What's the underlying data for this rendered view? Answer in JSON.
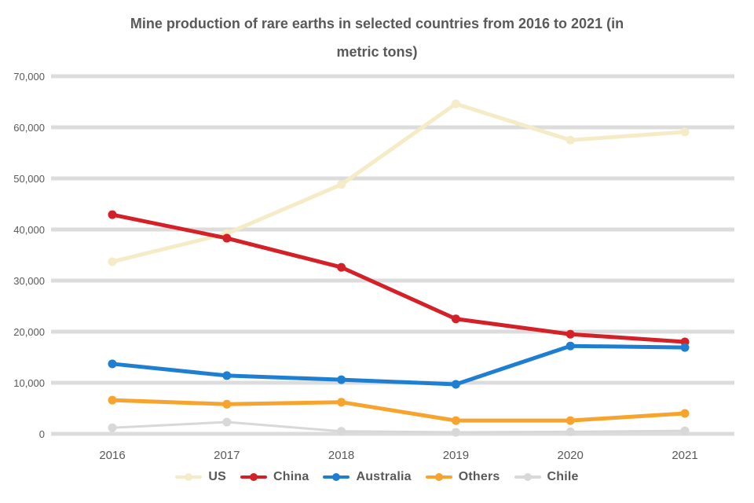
{
  "title": {
    "line1": "Mine production of rare earths in selected countries from 2016 to 2021 (in",
    "line2": "metric tons)"
  },
  "colors": {
    "background": "#ffffff",
    "gridline": "#dcdcdc",
    "text": "#595959"
  },
  "chart_data": {
    "type": "line",
    "categories": [
      "2016",
      "2017",
      "2018",
      "2019",
      "2020",
      "2021"
    ],
    "series": [
      {
        "name": "US",
        "color": "#f5ecc7",
        "line_width": 5,
        "values": [
          33700,
          39200,
          48800,
          64600,
          57500,
          59100
        ]
      },
      {
        "name": "China",
        "color": "#d42027",
        "line_width": 5,
        "values": [
          42900,
          38300,
          32600,
          22500,
          19500,
          18000
        ]
      },
      {
        "name": "Australia",
        "color": "#1e7fd2",
        "line_width": 5,
        "values": [
          13700,
          11400,
          10600,
          9700,
          17200,
          16900
        ]
      },
      {
        "name": "Others",
        "color": "#f7a42e",
        "line_width": 5,
        "values": [
          6600,
          5800,
          6200,
          2600,
          2600,
          4000
        ]
      },
      {
        "name": "Chile",
        "color": "#d8d8d8",
        "line_width": 3,
        "values": [
          1200,
          2300,
          500,
          300,
          400,
          600
        ]
      }
    ],
    "title": "Mine production of rare earths in selected countries from 2016 to 2021 (in metric tons)",
    "xlabel": "",
    "ylabel": "",
    "ylim": [
      0,
      70000
    ],
    "ytick_step": 10000,
    "y_tick_labels": [
      "70,000",
      "60,000",
      "50,000",
      "40,000",
      "30,000",
      "20,000",
      "10,000",
      "0"
    ],
    "grid": true,
    "legend_position": "bottom"
  }
}
